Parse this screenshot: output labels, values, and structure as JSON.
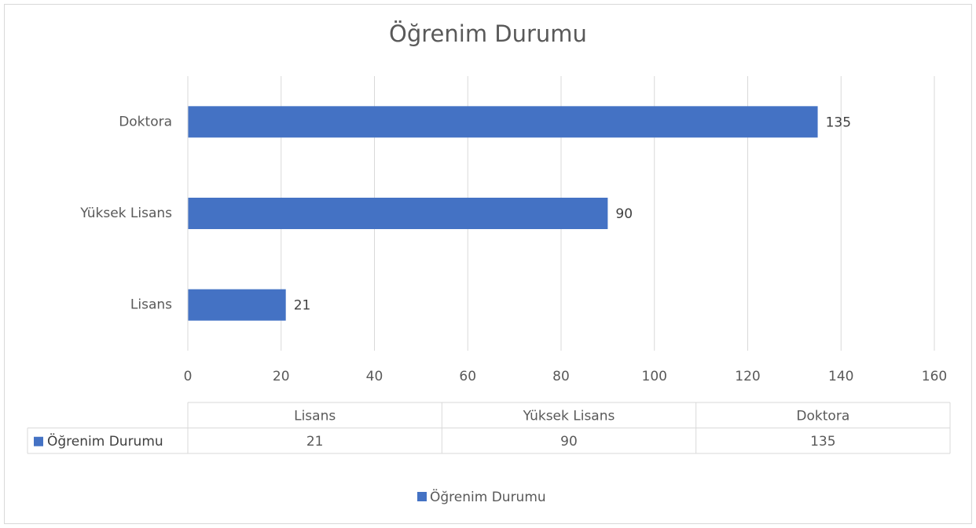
{
  "chart_data": {
    "type": "bar",
    "orientation": "horizontal",
    "title": "Öğrenim Durumu",
    "categories": [
      "Lisans",
      "Yüksek Lisans",
      "Doktora"
    ],
    "series": [
      {
        "name": "Öğrenim Durumu",
        "color": "#4472c4",
        "values": [
          21,
          90,
          135
        ]
      }
    ],
    "xlim": [
      0,
      160
    ],
    "xticks": [
      0,
      20,
      40,
      60,
      80,
      100,
      120,
      140,
      160
    ],
    "grid": true,
    "data_labels": true,
    "data_table": true,
    "legend": "bottom"
  }
}
